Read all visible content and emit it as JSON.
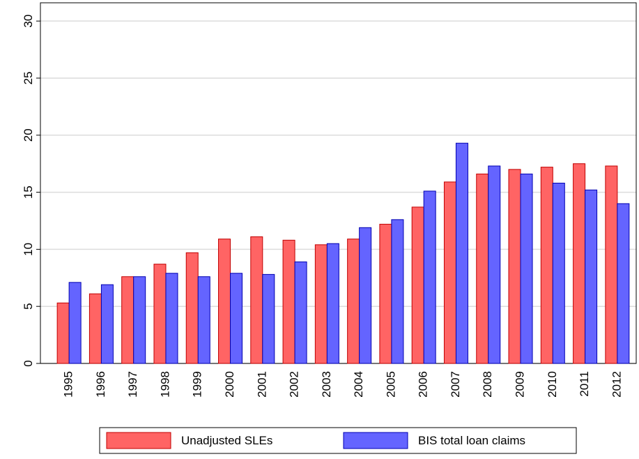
{
  "chart_data": {
    "type": "bar",
    "categories": [
      "1995",
      "1996",
      "1997",
      "1998",
      "1999",
      "2000",
      "2001",
      "2002",
      "2003",
      "2004",
      "2005",
      "2006",
      "2007",
      "2008",
      "2009",
      "2010",
      "2011",
      "2012"
    ],
    "series": [
      {
        "name": "Unadjusted SLEs",
        "color": "#ff6464",
        "values": [
          5.3,
          6.1,
          7.6,
          8.7,
          9.7,
          10.9,
          11.1,
          10.8,
          10.4,
          10.9,
          12.2,
          13.7,
          15.9,
          16.6,
          17.0,
          17.2,
          17.5,
          17.3
        ]
      },
      {
        "name": "BIS total loan claims",
        "color": "#6464ff",
        "values": [
          7.1,
          6.9,
          7.6,
          7.9,
          7.6,
          7.9,
          7.8,
          8.9,
          10.5,
          11.9,
          12.6,
          15.1,
          19.3,
          17.3,
          16.6,
          15.8,
          15.2,
          14.0
        ]
      }
    ],
    "ylim": [
      0,
      31.6
    ],
    "yticks": [
      0,
      5,
      10,
      15,
      20,
      25,
      30
    ],
    "grid": true,
    "legend": "bottom"
  }
}
